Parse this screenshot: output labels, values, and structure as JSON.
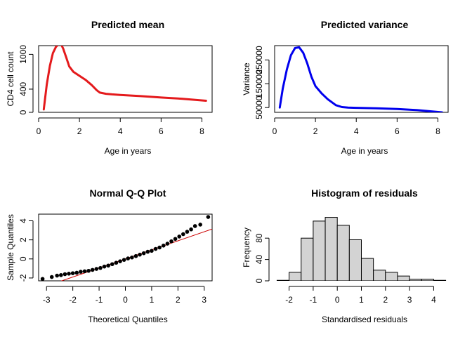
{
  "chart_data": [
    {
      "type": "line",
      "title": "Predicted mean",
      "xlabel": "Age in years",
      "ylabel": "CD4 cell count",
      "xlim": [
        0,
        8.5
      ],
      "ylim": [
        0,
        1150
      ],
      "xticks": [
        0,
        2,
        4,
        6,
        8
      ],
      "yticks": [
        0,
        400,
        1000
      ],
      "ytick_labels": [
        "0",
        "400",
        "1000"
      ],
      "series": [
        {
          "color": "#e41a1c",
          "x": [
            0.25,
            0.4,
            0.55,
            0.7,
            0.85,
            1.0,
            1.1,
            1.2,
            1.35,
            1.5,
            1.7,
            2.0,
            2.3,
            2.6,
            2.85,
            3.0,
            3.3,
            3.6,
            4.0,
            5.0,
            6.0,
            7.0,
            8.2
          ],
          "y": [
            50,
            480,
            800,
            1020,
            1130,
            1180,
            1170,
            1100,
            950,
            790,
            700,
            630,
            560,
            470,
            380,
            340,
            320,
            310,
            300,
            280,
            255,
            235,
            200
          ]
        }
      ]
    },
    {
      "type": "line",
      "title": "Predicted variance",
      "xlabel": "Age in years",
      "ylabel": "Variance",
      "xlim": [
        0,
        8.5
      ],
      "ylim": [
        30000,
        310000
      ],
      "xticks": [
        0,
        2,
        4,
        6,
        8
      ],
      "yticks": [
        50000,
        150000,
        250000
      ],
      "ytick_labels": [
        "50000",
        "150000",
        "250000"
      ],
      "series": [
        {
          "color": "#0000ee",
          "x": [
            0.25,
            0.4,
            0.6,
            0.8,
            1.0,
            1.2,
            1.4,
            1.6,
            1.8,
            2.0,
            2.3,
            2.6,
            3.0,
            3.3,
            3.6,
            4.0,
            5.0,
            6.0,
            7.0,
            8.2
          ],
          "y": [
            50000,
            130000,
            210000,
            270000,
            300000,
            303000,
            280000,
            235000,
            180000,
            140000,
            110000,
            85000,
            60000,
            52000,
            50000,
            49000,
            47000,
            44000,
            39000,
            30000
          ]
        }
      ]
    },
    {
      "type": "scatter",
      "title": "Normal Q-Q Plot",
      "xlabel": "Theoretical Quantiles",
      "ylabel": "Sample Quantiles",
      "xlim": [
        -3.3,
        3.3
      ],
      "ylim": [
        -2.3,
        4.7
      ],
      "xticks": [
        -3,
        -2,
        -1,
        0,
        1,
        2,
        3
      ],
      "yticks": [
        -2,
        0,
        2,
        4
      ],
      "reference_line": {
        "color": "#cc0000",
        "intercept": 0.0,
        "slope": 0.95
      },
      "points": [
        [
          -3.15,
          -2.1
        ],
        [
          -2.8,
          -1.9
        ],
        [
          -2.6,
          -1.75
        ],
        [
          -2.45,
          -1.7
        ],
        [
          -2.3,
          -1.6
        ],
        [
          -2.15,
          -1.55
        ],
        [
          -2.0,
          -1.5
        ],
        [
          -1.85,
          -1.45
        ],
        [
          -1.7,
          -1.35
        ],
        [
          -1.55,
          -1.3
        ],
        [
          -1.4,
          -1.25
        ],
        [
          -1.25,
          -1.15
        ],
        [
          -1.1,
          -1.05
        ],
        [
          -0.95,
          -0.95
        ],
        [
          -0.8,
          -0.8
        ],
        [
          -0.65,
          -0.7
        ],
        [
          -0.5,
          -0.55
        ],
        [
          -0.35,
          -0.4
        ],
        [
          -0.2,
          -0.25
        ],
        [
          -0.05,
          -0.1
        ],
        [
          0.1,
          0.05
        ],
        [
          0.25,
          0.15
        ],
        [
          0.4,
          0.3
        ],
        [
          0.55,
          0.45
        ],
        [
          0.7,
          0.6
        ],
        [
          0.85,
          0.75
        ],
        [
          1.0,
          0.85
        ],
        [
          1.15,
          1.05
        ],
        [
          1.3,
          1.2
        ],
        [
          1.45,
          1.4
        ],
        [
          1.6,
          1.6
        ],
        [
          1.75,
          1.85
        ],
        [
          1.9,
          2.1
        ],
        [
          2.05,
          2.35
        ],
        [
          2.2,
          2.6
        ],
        [
          2.35,
          2.85
        ],
        [
          2.5,
          3.1
        ],
        [
          2.65,
          3.45
        ],
        [
          2.85,
          3.6
        ],
        [
          3.15,
          4.4
        ]
      ]
    },
    {
      "type": "bar",
      "title": "Histogram of residuals",
      "xlabel": "Standardised residuals",
      "ylabel": "Frequency",
      "xlim": [
        -2.6,
        4.6
      ],
      "ylim": [
        0,
        125
      ],
      "xticks": [
        -2,
        -1,
        0,
        1,
        2,
        3,
        4
      ],
      "yticks": [
        0,
        40,
        80
      ],
      "bin_width": 0.5,
      "bins": [
        {
          "x0": -2.5,
          "count": 1
        },
        {
          "x0": -2.0,
          "count": 16
        },
        {
          "x0": -1.5,
          "count": 80
        },
        {
          "x0": -1.0,
          "count": 112
        },
        {
          "x0": -0.5,
          "count": 119
        },
        {
          "x0": 0.0,
          "count": 104
        },
        {
          "x0": 0.5,
          "count": 77
        },
        {
          "x0": 1.0,
          "count": 42
        },
        {
          "x0": 1.5,
          "count": 20
        },
        {
          "x0": 2.0,
          "count": 16
        },
        {
          "x0": 2.5,
          "count": 9
        },
        {
          "x0": 3.0,
          "count": 3
        },
        {
          "x0": 3.5,
          "count": 3
        },
        {
          "x0": 4.0,
          "count": 1
        }
      ],
      "bar_color": "#d3d3d3"
    }
  ]
}
